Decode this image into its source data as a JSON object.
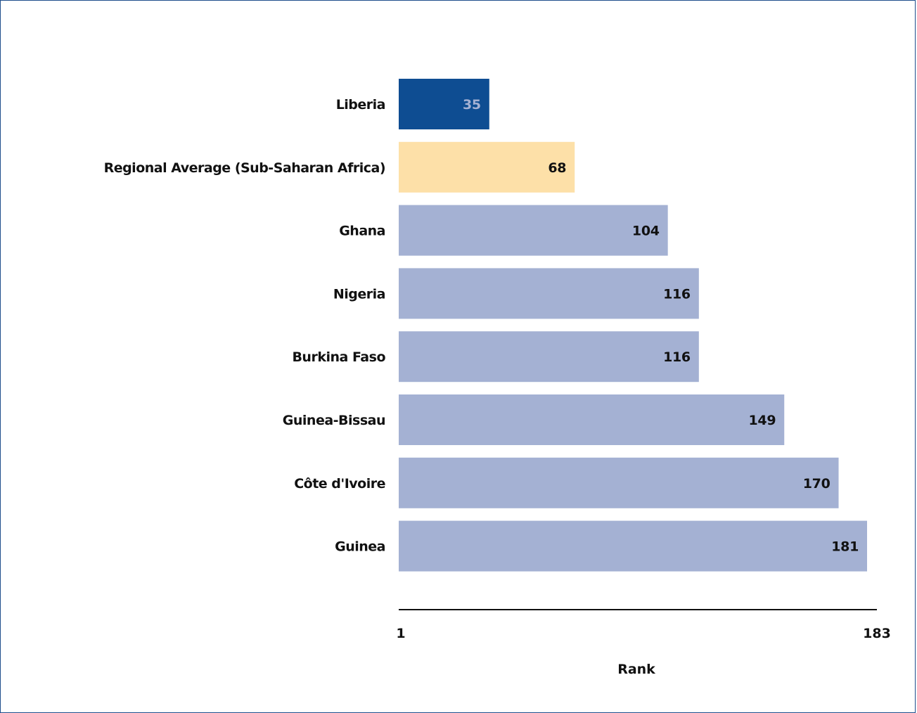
{
  "chart_data": {
    "type": "bar",
    "orientation": "horizontal",
    "categories": [
      "Liberia",
      "Regional Average (Sub-Saharan Africa)",
      "Ghana",
      "Nigeria",
      "Burkina Faso",
      "Guinea-Bissau",
      "Côte d'Ivoire",
      "Guinea"
    ],
    "values": [
      35,
      68,
      104,
      116,
      116,
      149,
      170,
      181
    ],
    "bar_colors": [
      "#0e4d92",
      "#fde0a8",
      "#a4b1d3",
      "#a4b1d3",
      "#a4b1d3",
      "#a4b1d3",
      "#a4b1d3",
      "#a4b1d3"
    ],
    "value_label_colors": [
      "#a4b1d3",
      "#111111",
      "#111111",
      "#111111",
      "#111111",
      "#111111",
      "#111111",
      "#111111"
    ],
    "xlabel": "Rank",
    "ylabel": "",
    "xlim": [
      1,
      183
    ],
    "x_tick_labels": [
      "1",
      "183"
    ],
    "grid": false,
    "legend": "none"
  }
}
